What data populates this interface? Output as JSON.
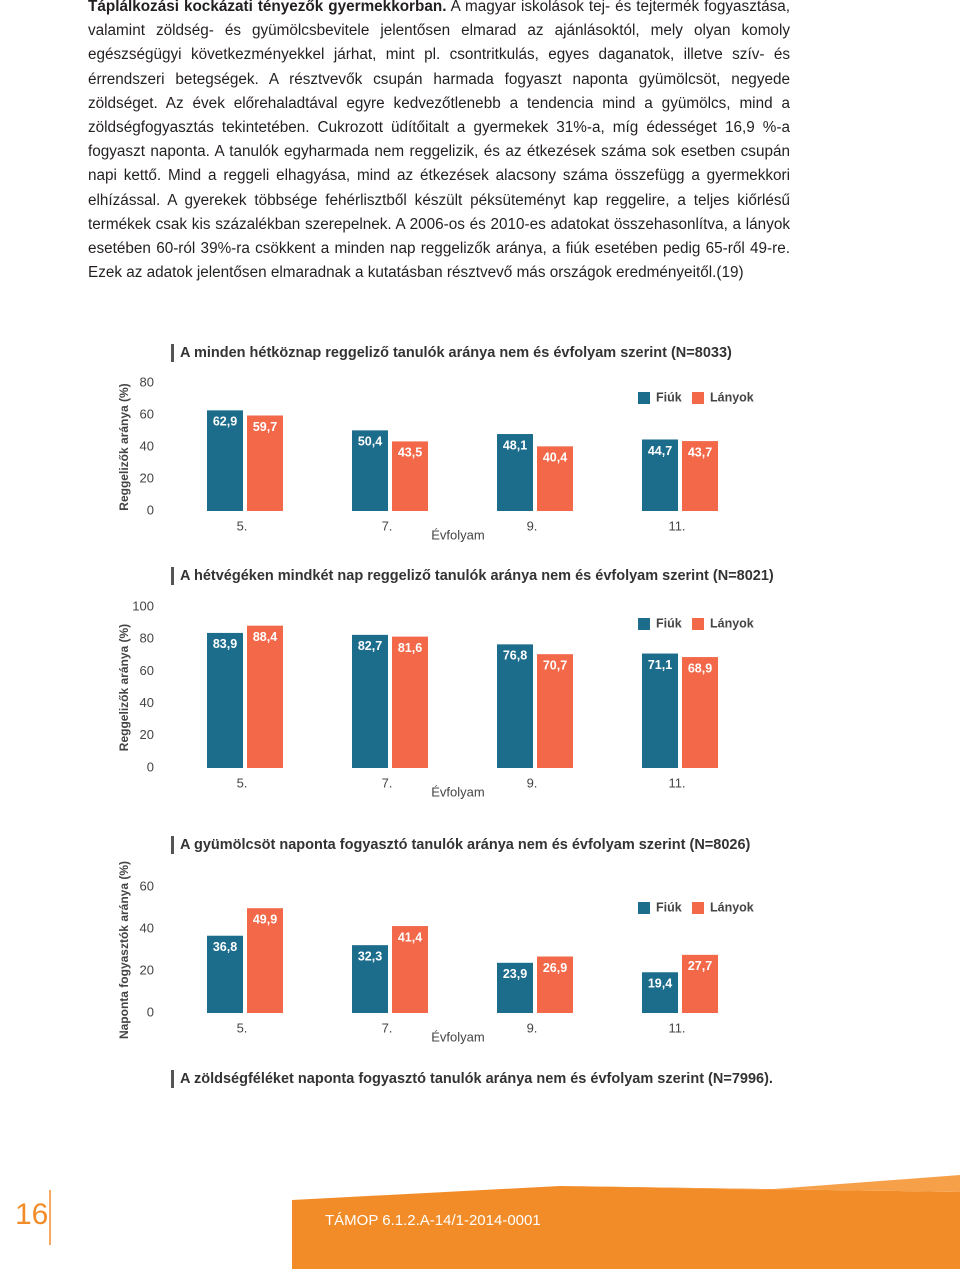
{
  "paragraph": {
    "lead": "Táplálkozási kockázati tényezők gyermekkorban.",
    "text": "A magyar iskolások tej- és tejtermék fogyasztása, valamint zöldség- és gyümölcsbevitele jelentősen elmarad az ajánlásoktól, mely olyan komoly egészségügyi következményekkel járhat, mint pl. csontritkulás, egyes daganatok, illetve szív- és érrendszeri betegségek. A résztvevők csupán harmada fogyaszt naponta gyümölcsöt, negyede zöldséget. Az évek előrehaladtával egyre kedvezőtlenebb a tendencia mind a gyümölcs, mind a zöldségfogyasztás tekintetében. Cukrozott üdítőitalt a gyermekek 31%-a, míg édességet 16,9 %-a fogyaszt naponta. A tanulók egyharmada nem reggelizik, és az étkezések száma sok esetben csupán napi kettő. Mind a reggeli elhagyása, mind az étkezések alacsony száma összefügg a gyermekkori elhízással. A gyerekek többsége fehérlisztből készült péksüteményt kap reggelire, a teljes kiőrlésű termékek csak kis százalékban szerepelnek. A 2006-os és 2010-es adatokat összehasonlítva, a lányok esetében 60-ról 39%-ra csökkent a minden nap reggelizők aránya, a fiúk esetében pedig 65-ről 49-re. Ezek az adatok jelentősen elmaradnak a kutatásban résztvevő más országok eredményeitől.(19)"
  },
  "chart_data": [
    {
      "type": "bar",
      "title": "A minden hétköznap reggeliző tanulók aránya nem és évfolyam szerint (N=8033)",
      "ylabel": "Reggelizők aránya (%)",
      "xlabel": "Évfolyam",
      "categories": [
        "5.",
        "7.",
        "9.",
        "11."
      ],
      "series": [
        {
          "name": "Fiúk",
          "color": "#1c6c8c",
          "values": [
            62.9,
            50.4,
            48.1,
            44.7
          ],
          "value_labels": [
            "62,9",
            "50,4",
            "48,1",
            "44,7"
          ]
        },
        {
          "name": "Lányok",
          "color": "#f26849",
          "values": [
            59.7,
            43.5,
            40.4,
            43.7
          ],
          "value_labels": [
            "59,7",
            "43,5",
            "40,4",
            "43,7"
          ]
        }
      ],
      "ylim": [
        0,
        80
      ],
      "yticks": [
        0,
        20,
        40,
        60,
        80
      ]
    },
    {
      "type": "bar",
      "title": "A hétvégéken mindkét nap reggeliző tanulók aránya nem és évfolyam szerint (N=8021)",
      "ylabel": "Reggelizők aránya (%)",
      "xlabel": "Évfolyam",
      "categories": [
        "5.",
        "7.",
        "9.",
        "11."
      ],
      "series": [
        {
          "name": "Fiúk",
          "color": "#1c6c8c",
          "values": [
            83.9,
            82.7,
            76.8,
            71.1
          ],
          "value_labels": [
            "83,9",
            "82,7",
            "76,8",
            "71,1"
          ]
        },
        {
          "name": "Lányok",
          "color": "#f26849",
          "values": [
            88.4,
            81.6,
            70.7,
            68.9
          ],
          "value_labels": [
            "88,4",
            "81,6",
            "70,7",
            "68,9"
          ]
        }
      ],
      "ylim": [
        0,
        100
      ],
      "yticks": [
        0,
        20,
        40,
        60,
        80,
        100
      ]
    },
    {
      "type": "bar",
      "title": "A gyümölcsöt naponta fogyasztó tanulók aránya nem és évfolyam szerint (N=8026)",
      "ylabel": "Naponta fogyasztók aránya (%)",
      "xlabel": "Évfolyam",
      "categories": [
        "5.",
        "7.",
        "9.",
        "11."
      ],
      "series": [
        {
          "name": "Fiúk",
          "color": "#1c6c8c",
          "values": [
            36.8,
            32.3,
            23.9,
            19.4
          ],
          "value_labels": [
            "36,8",
            "32,3",
            "23,9",
            "19,4"
          ]
        },
        {
          "name": "Lányok",
          "color": "#f26849",
          "values": [
            49.9,
            41.4,
            26.9,
            27.7
          ],
          "value_labels": [
            "49,9",
            "41,4",
            "26,9",
            "27,7"
          ]
        }
      ],
      "ylim": [
        0,
        60
      ],
      "yticks": [
        0,
        20,
        40,
        60
      ]
    },
    {
      "type": "bar",
      "title": "A zöldségféléket naponta fogyasztó tanulók aránya nem és évfolyam szerint (N=7996)."
    }
  ],
  "footer": {
    "page_number": "16",
    "project": "TÁMOP 6.1.2.A-14/1-2014-0001"
  }
}
